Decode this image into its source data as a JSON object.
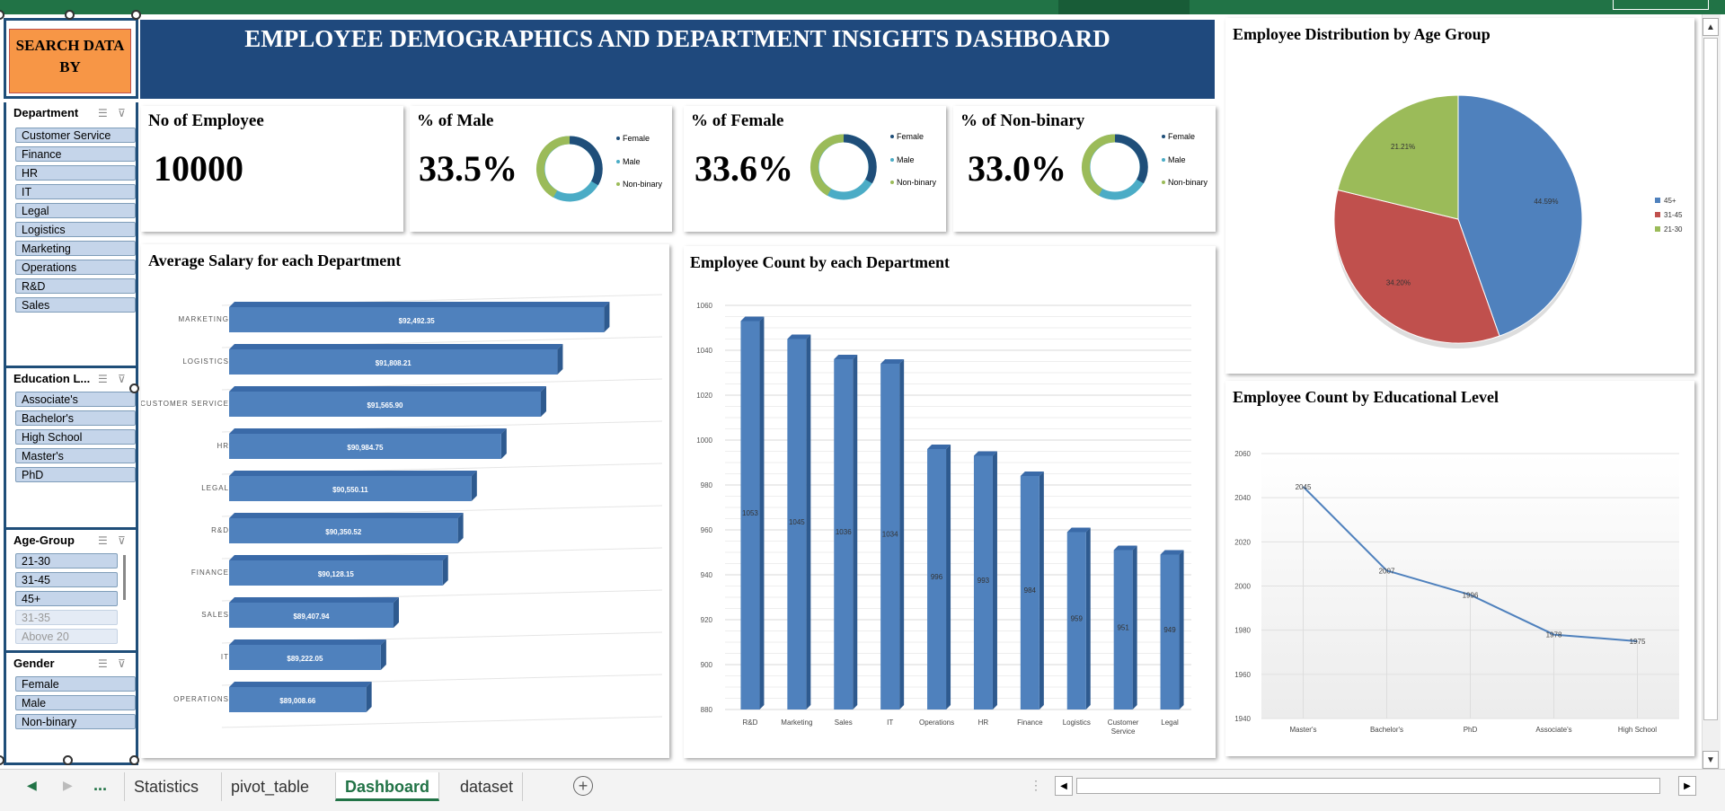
{
  "dashboard_title": "EMPLOYEE DEMOGRAPHICS AND DEPARTMENT INSIGHTS DASHBOARD",
  "search_box": "SEARCH DATA BY",
  "slicers": {
    "department": {
      "title": "Department",
      "items": [
        "Customer Service",
        "Finance",
        "HR",
        "IT",
        "Legal",
        "Logistics",
        "Marketing",
        "Operations",
        "R&D",
        "Sales"
      ]
    },
    "education": {
      "title": "Education L...",
      "items": [
        "Associate's",
        "Bachelor's",
        "High School",
        "Master's",
        "PhD"
      ]
    },
    "age_group": {
      "title": "Age-Group",
      "items": [
        "21-30",
        "31-45",
        "45+",
        "31-35",
        "Above 20"
      ]
    },
    "gender": {
      "title": "Gender",
      "items": [
        "Female",
        "Male",
        "Non-binary"
      ]
    }
  },
  "kpis": {
    "employees": {
      "label": "No of Employee",
      "value": "10000"
    },
    "male": {
      "label": "% of Male",
      "value": "33.5%"
    },
    "female": {
      "label": "% of Female",
      "value": "33.6%"
    },
    "nonbinary": {
      "label": "% of Non-binary",
      "value": "33.0%"
    },
    "legend": [
      "Female",
      "Male",
      "Non-binary"
    ]
  },
  "colors": {
    "female": "#1f4e79",
    "male": "#4bacc6",
    "nonbinary": "#9bbb59",
    "bar": "#4f81bd",
    "bar_dark": "#2e5a8f",
    "header": "#1f497d",
    "orange": "#f79646"
  },
  "sheet_tabs": [
    "Statistics",
    "pivot_table",
    "Dashboard",
    "dataset"
  ],
  "tab_nav": {
    "ellipsis": "...",
    "add": "+"
  },
  "chart_data": [
    {
      "type": "bar",
      "title": "Average Salary for each Department",
      "orientation": "horizontal",
      "categories": [
        "MARKETING",
        "LOGISTICS",
        "CUSTOMER SERVICE",
        "HR",
        "LEGAL",
        "R&D",
        "FINANCE",
        "SALES",
        "IT",
        "OPERATIONS"
      ],
      "values": [
        92492.35,
        91808.21,
        91565.9,
        90984.75,
        90550.11,
        90350.52,
        90128.15,
        89407.94,
        89222.05,
        89008.66
      ],
      "labels": [
        "$92,492.35",
        "$91,808.21",
        "$91,565.90",
        "$90,984.75",
        "$90,550.11",
        "$90,350.52",
        "$90,128.15",
        "$89,407.94",
        "$89,222.05",
        "$89,008.66"
      ],
      "xlim": [
        87000,
        93000
      ]
    },
    {
      "type": "bar",
      "title": "Employee Count by each Department",
      "categories": [
        "R&D",
        "Marketing",
        "Sales",
        "IT",
        "Operations",
        "HR",
        "Finance",
        "Logistics",
        "Customer Service",
        "Legal"
      ],
      "values": [
        1053,
        1045,
        1036,
        1034,
        996,
        993,
        984,
        959,
        951,
        949
      ],
      "ylim": [
        880,
        1060
      ],
      "yticks": [
        880,
        900,
        920,
        940,
        960,
        980,
        1000,
        1020,
        1040,
        1060
      ]
    },
    {
      "type": "pie",
      "title": "Employee Distribution by Age Group",
      "slices": [
        {
          "label": "45+",
          "value": 44.59,
          "text": "44.59%",
          "color": "#4f81bd"
        },
        {
          "label": "31-45",
          "value": 34.2,
          "text": "34.20%",
          "color": "#c0504d"
        },
        {
          "label": "21-30",
          "value": 21.21,
          "text": "21.21%",
          "color": "#9bbb59"
        }
      ]
    },
    {
      "type": "line",
      "title": "Employee Count by Educational Level",
      "categories": [
        "Master's",
        "Bachelor's",
        "PhD",
        "Associate's",
        "High School"
      ],
      "values": [
        2045,
        2007,
        1996,
        1978,
        1975
      ],
      "ylim": [
        1940,
        2060
      ],
      "yticks": [
        1940,
        1960,
        1980,
        2000,
        2020,
        2040,
        2060
      ]
    }
  ]
}
